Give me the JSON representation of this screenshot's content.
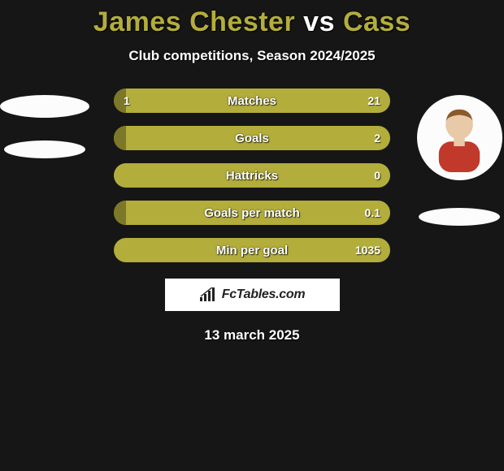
{
  "title": {
    "player1": "James Chester",
    "vs": "vs",
    "player2": "Cass",
    "color_player": "#b3ad3c",
    "color_vs": "#ffffff"
  },
  "subtitle": "Club competitions, Season 2024/2025",
  "date": "13 march 2025",
  "brand": "FcTables.com",
  "colors": {
    "bar_base": "#b3ad3c",
    "bar_alt": "#7b7929",
    "background": "#161616"
  },
  "bars": [
    {
      "label": "Matches",
      "left": "1",
      "right": "21",
      "left_pct": 4.5
    },
    {
      "label": "Goals",
      "left": "",
      "right": "2",
      "left_pct": 4.5
    },
    {
      "label": "Hattricks",
      "left": "",
      "right": "0",
      "left_pct": 0
    },
    {
      "label": "Goals per match",
      "left": "",
      "right": "0.1",
      "left_pct": 4.5
    },
    {
      "label": "Min per goal",
      "left": "",
      "right": "1035",
      "left_pct": 0
    }
  ],
  "players": {
    "left": {
      "name": "James Chester",
      "has_photo": false
    },
    "right": {
      "name": "Cass",
      "has_photo": true
    }
  }
}
